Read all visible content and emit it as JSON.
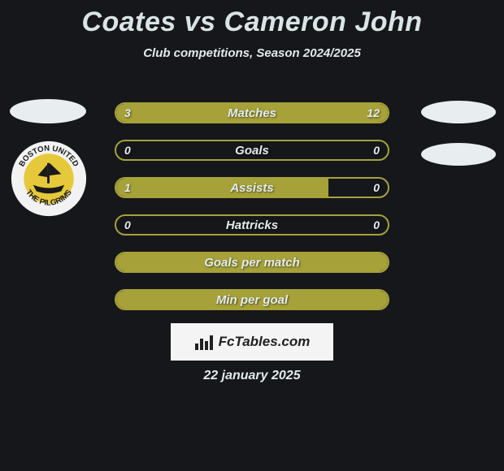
{
  "title": "Coates vs Cameron John",
  "subtitle": "Club competitions, Season 2024/2025",
  "colors": {
    "background": "#16171a",
    "bar_border": "#a6a139",
    "bar_fill": "#a6a139",
    "bar_fill_dark": "#7e7a2a",
    "text": "#e4ecee",
    "ellipse": "#e8edef",
    "brand_bg": "#f4f4f4",
    "brand_text": "#202020"
  },
  "club_badge": {
    "top_text": "BOSTON UNITED",
    "bottom_text": "THE PILGRIMS",
    "outer_color": "#f2f2f2",
    "inner_color": "#e6c93a",
    "ship_color": "#1a1a1a"
  },
  "bars": [
    {
      "label": "Matches",
      "left_val": "3",
      "right_val": "12",
      "left_pct": 20,
      "right_pct": 80,
      "show_values": true
    },
    {
      "label": "Goals",
      "left_val": "0",
      "right_val": "0",
      "left_pct": 0,
      "right_pct": 0,
      "show_values": true
    },
    {
      "label": "Assists",
      "left_val": "1",
      "right_val": "0",
      "left_pct": 78,
      "right_pct": 0,
      "show_values": true
    },
    {
      "label": "Hattricks",
      "left_val": "0",
      "right_val": "0",
      "left_pct": 0,
      "right_pct": 0,
      "show_values": true
    },
    {
      "label": "Goals per match",
      "left_val": "",
      "right_val": "",
      "left_pct": 100,
      "right_pct": 0,
      "show_values": false,
      "full_fill": true
    },
    {
      "label": "Min per goal",
      "left_val": "",
      "right_val": "",
      "left_pct": 100,
      "right_pct": 0,
      "show_values": false,
      "full_fill": true
    }
  ],
  "brand": "FcTables.com",
  "date": "22 january 2025"
}
